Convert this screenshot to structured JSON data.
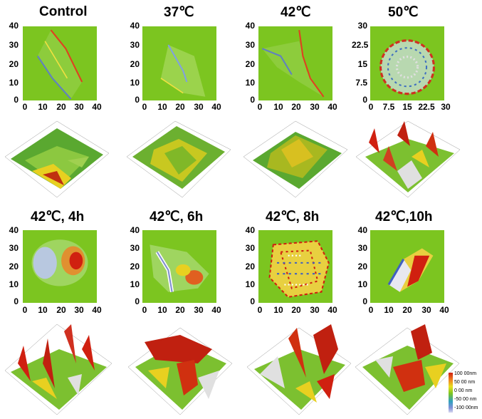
{
  "row1": [
    {
      "title": "Control",
      "yticks": [
        "40",
        "30",
        "20",
        "10",
        "0"
      ],
      "xticks": [
        "0",
        "10",
        "20",
        "30",
        "40"
      ]
    },
    {
      "title": "37℃",
      "yticks": [
        "40",
        "30",
        "20",
        "10",
        "0"
      ],
      "xticks": [
        "0",
        "10",
        "20",
        "30",
        "40"
      ]
    },
    {
      "title": "42℃",
      "yticks": [
        "40",
        "30",
        "20",
        "10",
        "0"
      ],
      "xticks": [
        "0",
        "10",
        "20",
        "30",
        "40"
      ]
    },
    {
      "title": "50℃",
      "yticks": [
        "30",
        "22.5",
        "15",
        "7.5",
        "0"
      ],
      "xticks": [
        "0",
        "7.5",
        "15",
        "22.5",
        "30"
      ]
    }
  ],
  "row2": [
    {
      "title": "42℃, 4h",
      "yticks": [
        "40",
        "30",
        "20",
        "10",
        "0"
      ],
      "xticks": [
        "0",
        "10",
        "20",
        "30",
        "40"
      ]
    },
    {
      "title": "42℃, 6h",
      "yticks": [
        "40",
        "30",
        "20",
        "10",
        "0"
      ],
      "xticks": [
        "0",
        "10",
        "20",
        "30",
        "40"
      ]
    },
    {
      "title": "42℃, 8h",
      "yticks": [
        "40",
        "30",
        "20",
        "10",
        "0"
      ],
      "xticks": [
        "0",
        "10",
        "20",
        "30",
        "40"
      ]
    },
    {
      "title": "42℃,10h",
      "yticks": [
        "40",
        "30",
        "20",
        "10",
        "0"
      ],
      "xticks": [
        "0",
        "10",
        "20",
        "30",
        "40"
      ]
    }
  ],
  "legend": {
    "labels": [
      "100 00nm",
      "50 00 nm",
      "0 00 nm",
      "-50 00 nm",
      "-100 00nm"
    ],
    "colors": {
      "high": "#d02010",
      "mid": "#7cc520",
      "low": "#d8d8f0"
    }
  }
}
